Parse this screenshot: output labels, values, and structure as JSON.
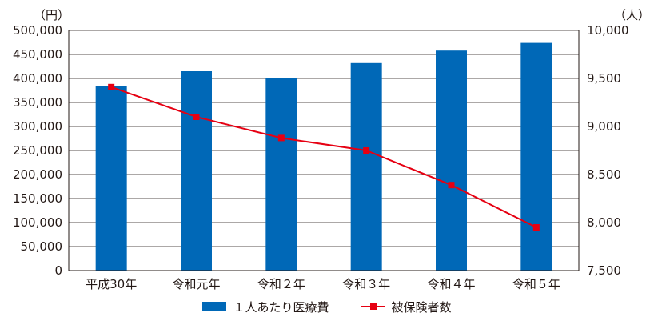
{
  "chart_data": {
    "type": "bar+line",
    "categories": [
      "平成30年",
      "令和元年",
      "令和２年",
      "令和３年",
      "令和４年",
      "令和５年"
    ],
    "series": [
      {
        "name": "１人あたり医療費",
        "type": "bar",
        "axis": "left",
        "values": [
          385000,
          415000,
          400000,
          432000,
          458000,
          474000
        ],
        "color": "#0068b7"
      },
      {
        "name": "被保険者数",
        "type": "line",
        "axis": "right",
        "values": [
          9410,
          9100,
          8880,
          8750,
          8390,
          7950
        ],
        "color": "#e60012"
      }
    ],
    "y_left": {
      "unit": "（円）",
      "range": [
        0,
        500000
      ],
      "ticks": [
        "0",
        "50,000",
        "100,000",
        "150,000",
        "200,000",
        "250,000",
        "300,000",
        "350,000",
        "400,000",
        "450,000",
        "500,000"
      ]
    },
    "y_right": {
      "unit": "（人）",
      "range": [
        7500,
        10000
      ],
      "ticks": [
        "7,500",
        "8,000",
        "8,500",
        "9,000",
        "9,500",
        "10,000"
      ]
    },
    "grid": true,
    "legend_position": "bottom"
  }
}
